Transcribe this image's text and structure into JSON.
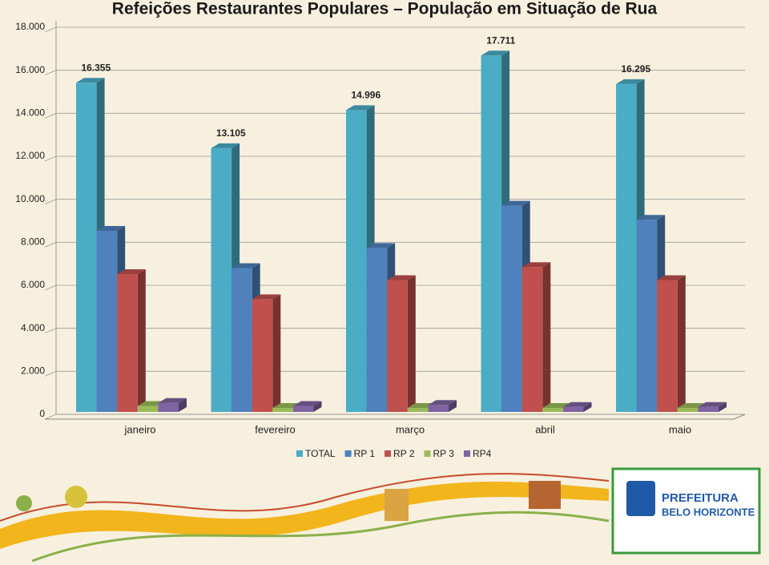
{
  "chart_data": {
    "type": "bar3d",
    "title": "Refeições Restaurantes Populares – População em Situação de Rua",
    "categories": [
      "janeiro",
      "fevereiro",
      "março",
      "abril",
      "maio"
    ],
    "series": [
      {
        "name": "TOTAL",
        "color": "#4bacc6",
        "values": [
          16355,
          13105,
          14996,
          17711,
          16295
        ],
        "value_labels": [
          "16.355",
          "13.105",
          "14.996",
          "17.711",
          "16.295"
        ]
      },
      {
        "name": "RP 1",
        "color": "#4f81bd",
        "values": [
          9000,
          7150,
          8150,
          10250,
          9550
        ]
      },
      {
        "name": "RP 2",
        "color": "#c0504d",
        "values": [
          6850,
          5600,
          6550,
          7200,
          6550
        ]
      },
      {
        "name": "RP 3",
        "color": "#9bbb59",
        "values": [
          300,
          200,
          200,
          200,
          200
        ]
      },
      {
        "name": "RP4",
        "color": "#8064a2",
        "values": [
          450,
          300,
          350,
          250,
          250
        ]
      }
    ],
    "ylim": [
      0,
      18000
    ],
    "yticks": [
      0,
      {
        "value": 2000,
        "label": "2.000"
      },
      {
        "value": 4000,
        "label": "4.000"
      },
      {
        "value": 6000,
        "label": "6.000"
      },
      {
        "value": 8000,
        "label": "8.000"
      },
      {
        "value": 10000,
        "label": "10.000"
      },
      {
        "value": 12000,
        "label": "12.000"
      },
      {
        "value": 14000,
        "label": "14.000"
      },
      {
        "value": 16000,
        "label": "16.000"
      },
      {
        "value": 18000,
        "label": "18.000"
      }
    ],
    "grid": true
  },
  "logo": {
    "line1": "PREFEITURA",
    "line2": "BELO HORIZONTE"
  }
}
